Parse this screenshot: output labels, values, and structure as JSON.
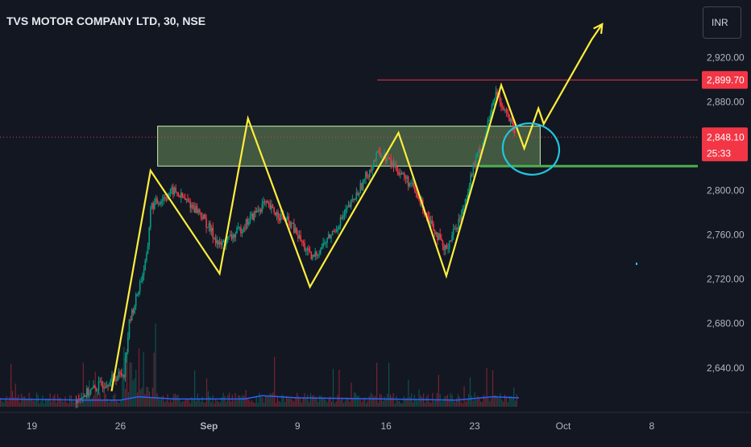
{
  "symbol_title": "TVS MOTOR COMPANY LTD, 30, NSE",
  "currency_button": "INR",
  "colors": {
    "background": "#131722",
    "axis_text": "#b2b5be",
    "price_line_red": "#f23645",
    "pattern_yellow": "#ffee3b",
    "support_green": "#4caf50",
    "zone_fill": "#9bd27a",
    "circle_cyan": "#22c5e0",
    "volume_line": "#2962ff",
    "candle_up": "#089981",
    "candle_down": "#f23645"
  },
  "chart_data": {
    "type": "candlestick",
    "symbol": "TVS MOTOR COMPANY LTD",
    "interval": "30",
    "exchange": "NSE",
    "ylim": [
      2605,
      2950
    ],
    "y_ticks": [
      2920,
      2880,
      2840,
      2800,
      2760,
      2720,
      2680,
      2640
    ],
    "y_tick_labels": [
      "2,920.00",
      "2,880.00",
      "",
      "2,800.00",
      "2,760.00",
      "2,720.00",
      "2,680.00",
      "2,640.00"
    ],
    "x_tick_labels": [
      {
        "label": "19",
        "session": 0
      },
      {
        "label": "26",
        "session": 5
      },
      {
        "label": "Sep",
        "session": 10
      },
      {
        "label": "9",
        "session": 15
      },
      {
        "label": "16",
        "session": 20
      },
      {
        "label": "23",
        "session": 25
      },
      {
        "label": "Oct",
        "session": 30
      },
      {
        "label": "8",
        "session": 35
      }
    ],
    "sessions_visible": [
      -1.8,
      37.6
    ],
    "current_price": {
      "label": "2,848.10",
      "countdown": "25:33",
      "value": 2848.1
    },
    "resistance_line": {
      "label": "2,899.70",
      "value": 2899.7,
      "from_session": 19.5
    },
    "support_line": {
      "value": 2822,
      "from_session": 25.3
    },
    "supply_zone": {
      "from_session": 7.1,
      "to_session": 28.7,
      "top": 2858,
      "bottom": 2822
    },
    "price_path": [
      [
        2.5,
        2612
      ],
      [
        5.2,
        2636
      ],
      [
        5.5,
        2680
      ],
      [
        6.5,
        2740
      ],
      [
        6.7,
        2785
      ],
      [
        8.0,
        2800
      ],
      [
        9.5,
        2780
      ],
      [
        10.6,
        2750
      ],
      [
        11.6,
        2762
      ],
      [
        13.1,
        2788
      ],
      [
        14.6,
        2770
      ],
      [
        15.8,
        2738
      ],
      [
        17.0,
        2762
      ],
      [
        18.3,
        2795
      ],
      [
        19.6,
        2835
      ],
      [
        20.6,
        2820
      ],
      [
        21.4,
        2805
      ],
      [
        22.6,
        2770
      ],
      [
        23.3,
        2745
      ],
      [
        24.3,
        2780
      ],
      [
        24.9,
        2820
      ],
      [
        25.6,
        2850
      ],
      [
        26.2,
        2888
      ],
      [
        26.8,
        2870
      ],
      [
        27.3,
        2850
      ]
    ],
    "volume_line": [
      [
        -2,
        2612
      ],
      [
        3,
        2611
      ],
      [
        5,
        2611
      ],
      [
        6,
        2614
      ],
      [
        8,
        2612
      ],
      [
        12,
        2612
      ],
      [
        13,
        2615
      ],
      [
        15,
        2613
      ],
      [
        20,
        2612
      ],
      [
        24,
        2611
      ],
      [
        26,
        2614
      ],
      [
        27.5,
        2613
      ]
    ],
    "annotations": {
      "zigzag": [
        [
          4.5,
          2619
        ],
        [
          6.7,
          2818
        ],
        [
          10.6,
          2725
        ],
        [
          12.2,
          2865
        ],
        [
          15.7,
          2713
        ],
        [
          20.7,
          2852
        ],
        [
          23.4,
          2723
        ],
        [
          26.5,
          2895
        ],
        [
          27.8,
          2838
        ],
        [
          28.6,
          2874
        ],
        [
          28.9,
          2860
        ],
        [
          31.6,
          2936
        ],
        [
          32.2,
          2950
        ]
      ],
      "circle": {
        "session": 28.0,
        "price": 2838,
        "radius_sessions": 1.6,
        "radius_price": 23
      }
    }
  }
}
